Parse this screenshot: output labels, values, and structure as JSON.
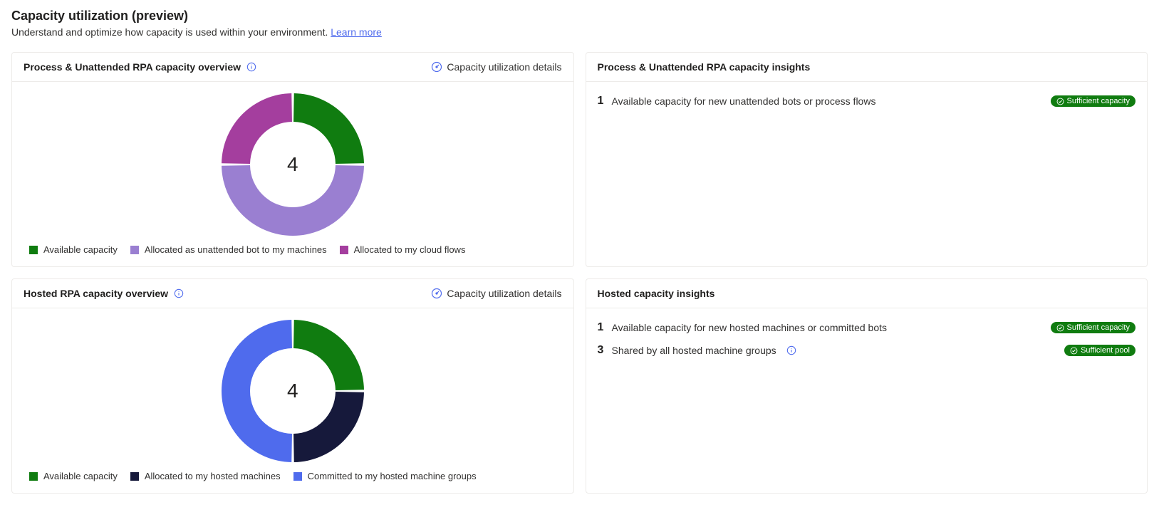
{
  "page": {
    "title": "Capacity utilization (preview)",
    "subtitle_prefix": "Understand and optimize how capacity is used within your environment. ",
    "learn_more": "Learn more"
  },
  "card1": {
    "title": "Process & Unattended RPA capacity overview",
    "details_link": "Capacity utilization details",
    "chart": {
      "type": "donut",
      "total": "4",
      "gap_deg": 2,
      "slices": [
        {
          "label": "Available capacity",
          "value": 1,
          "color": "#107c10"
        },
        {
          "label": "Allocated as unattended bot to my machines",
          "value": 2,
          "color": "#9a7fd1"
        },
        {
          "label": "Allocated to my cloud flows",
          "value": 1,
          "color": "#a43e9e"
        }
      ]
    }
  },
  "card2": {
    "title": "Process & Unattended RPA capacity insights",
    "insights": [
      {
        "number": "1",
        "text": "Available capacity for new unattended bots or process flows",
        "badge": "Sufficient capacity",
        "badge_color": "#107c10",
        "info": false
      }
    ]
  },
  "card3": {
    "title": "Hosted RPA capacity overview",
    "details_link": "Capacity utilization details",
    "chart": {
      "type": "donut",
      "total": "4",
      "gap_deg": 2,
      "slices": [
        {
          "label": "Available capacity",
          "value": 1,
          "color": "#107c10"
        },
        {
          "label": "Allocated to my hosted machines",
          "value": 1,
          "color": "#16193b"
        },
        {
          "label": "Committed to my hosted machine groups",
          "value": 2,
          "color": "#4f6bed"
        }
      ]
    }
  },
  "card4": {
    "title": "Hosted capacity insights",
    "insights": [
      {
        "number": "1",
        "text": "Available capacity for new hosted machines or committed bots",
        "badge": "Sufficient capacity",
        "badge_color": "#107c10",
        "info": false
      },
      {
        "number": "3",
        "text": "Shared by all hosted machine groups",
        "badge": "Sufficient pool",
        "badge_color": "#107c10",
        "info": true
      }
    ]
  }
}
